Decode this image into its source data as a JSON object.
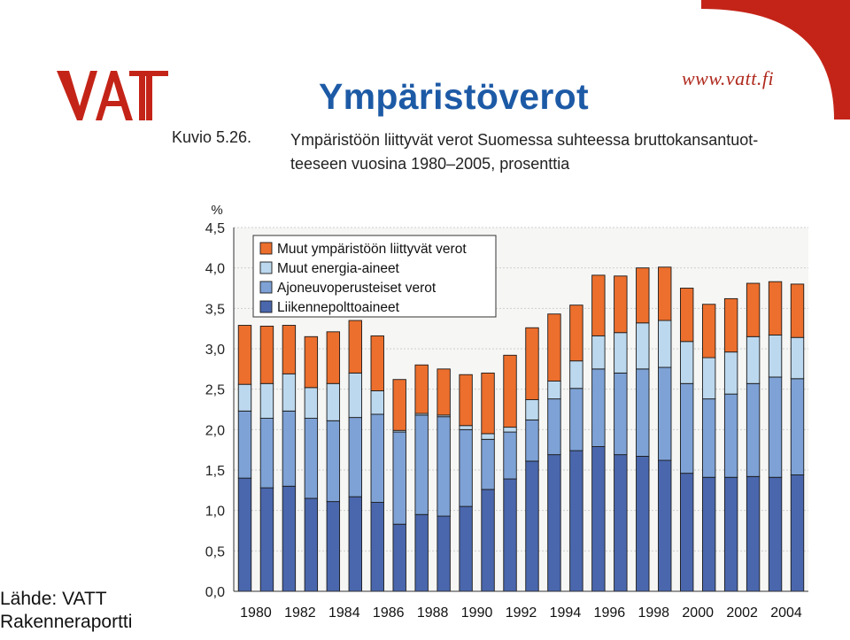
{
  "header": {
    "title": "Ympäristöverot",
    "url": "www.vatt.fi",
    "logo_text": "VATT"
  },
  "figure": {
    "number": "Kuvio 5.26.",
    "caption_line1": "Ympäristöön liittyvät verot Suomessa suhteessa bruttokansantuot-",
    "caption_line2": "teeseen vuosina 1980–2005, prosenttia"
  },
  "source": {
    "line1": "Lähde: VATT",
    "line2": "Rakenneraportti"
  },
  "chart_data": {
    "type": "bar",
    "stacked": true,
    "ylabel": "%",
    "ylim": [
      0,
      4.5
    ],
    "yticks": [
      "0,0",
      "0,5",
      "1,0",
      "1,5",
      "2,0",
      "2,5",
      "3,0",
      "3,5",
      "4,0",
      "4,5"
    ],
    "grid": true,
    "legend_position": "top-left",
    "x": [
      "1980",
      "1981",
      "1982",
      "1983",
      "1984",
      "1985",
      "1986",
      "1987",
      "1988",
      "1989",
      "1990",
      "1991",
      "1992",
      "1993",
      "1994",
      "1995",
      "1996",
      "1997",
      "1998",
      "1999",
      "2000",
      "2001",
      "2002",
      "2003",
      "2004",
      "2005"
    ],
    "xtick_labels": [
      "1980",
      "",
      "1982",
      "",
      "1984",
      "",
      "1986",
      "",
      "1988",
      "",
      "1990",
      "",
      "1992",
      "",
      "1994",
      "",
      "1996",
      "",
      "1998",
      "",
      "2000",
      "",
      "2002",
      "",
      "2004",
      ""
    ],
    "series": [
      {
        "name": "Liikennepolttoaineet",
        "color": "#4a67ad",
        "values": [
          1.4,
          1.28,
          1.3,
          1.15,
          1.11,
          1.17,
          1.1,
          0.83,
          0.95,
          0.93,
          1.05,
          1.26,
          1.39,
          1.61,
          1.69,
          1.74,
          1.79,
          1.69,
          1.67,
          1.62,
          1.46,
          1.41,
          1.41,
          1.42,
          1.41,
          1.44
        ]
      },
      {
        "name": "Ajoneuvoperusteiset verot",
        "color": "#7ea2d6",
        "values": [
          0.83,
          0.86,
          0.93,
          0.99,
          1.0,
          0.98,
          1.09,
          1.14,
          1.23,
          1.23,
          0.95,
          0.62,
          0.58,
          0.51,
          0.69,
          0.77,
          0.96,
          1.01,
          1.08,
          1.15,
          1.11,
          0.97,
          1.03,
          1.15,
          1.24,
          1.19
        ]
      },
      {
        "name": "Muut energia-aineet",
        "color": "#bcd8ee",
        "values": [
          0.33,
          0.43,
          0.46,
          0.38,
          0.46,
          0.55,
          0.29,
          0.02,
          0.02,
          0.02,
          0.05,
          0.07,
          0.06,
          0.25,
          0.22,
          0.34,
          0.41,
          0.5,
          0.57,
          0.58,
          0.52,
          0.51,
          0.52,
          0.58,
          0.52,
          0.51
        ]
      },
      {
        "name": "Muut ympäristöön liittyvät verot",
        "color": "#ec6f2d",
        "values": [
          0.73,
          0.71,
          0.6,
          0.63,
          0.64,
          0.65,
          0.68,
          0.63,
          0.6,
          0.57,
          0.63,
          0.75,
          0.89,
          0.89,
          0.83,
          0.69,
          0.75,
          0.7,
          0.68,
          0.66,
          0.66,
          0.66,
          0.66,
          0.66,
          0.66,
          0.66
        ]
      }
    ]
  }
}
